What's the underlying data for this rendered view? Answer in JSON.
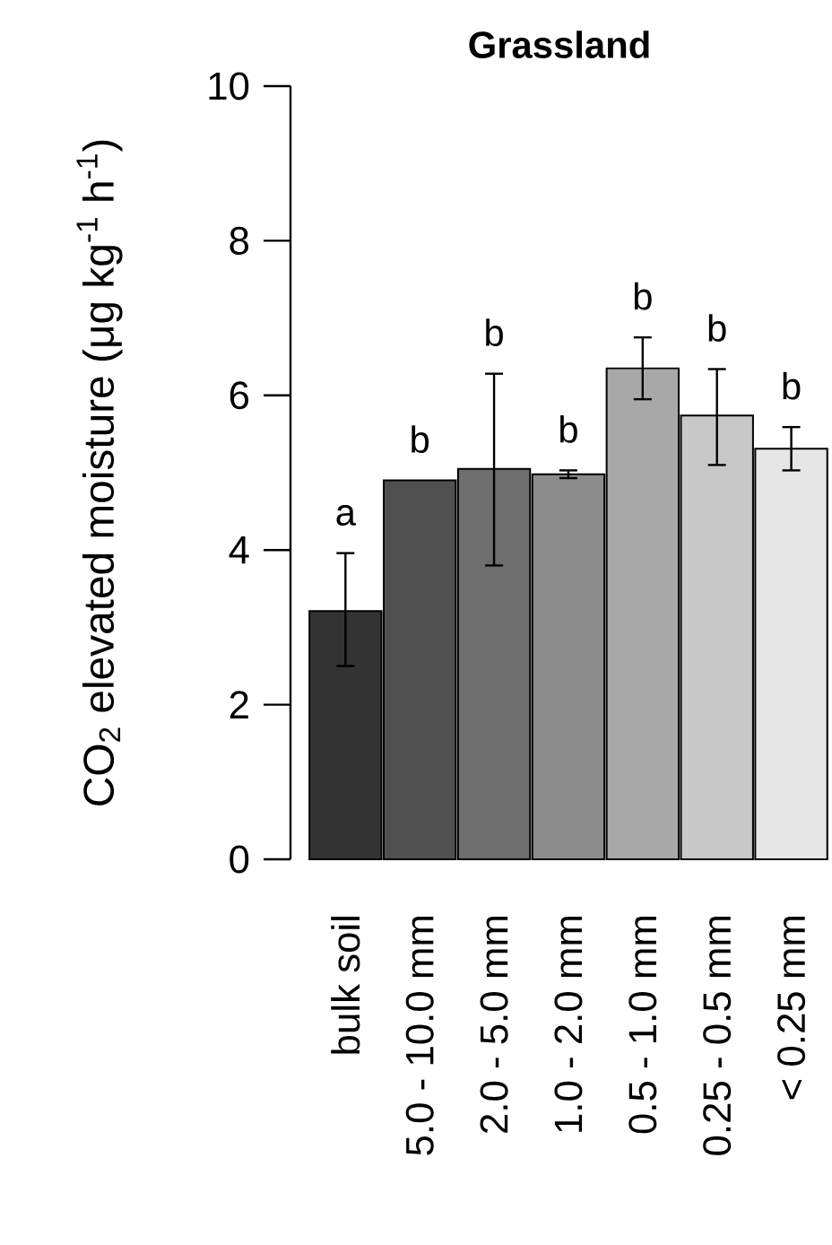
{
  "chart_data": {
    "type": "bar",
    "title": "Grassland",
    "ylabel": "CO$_{2}$ elevated moisture (μg kg$^{-1}$ h$^{-1}$)",
    "categories": [
      "bulk soil",
      "5.0 - 10.0 mm",
      "2.0 - 5.0 mm",
      "1.0 - 2.0 mm",
      "0.5 - 1.0 mm",
      "0.25 - 0.5 mm",
      "< 0.25 mm"
    ],
    "values": [
      3.21,
      4.9,
      5.05,
      4.98,
      6.35,
      5.74,
      5.31
    ],
    "errors": [
      [
        2.5,
        3.96
      ],
      null,
      [
        3.8,
        6.28
      ],
      [
        4.93,
        5.03
      ],
      [
        5.95,
        6.75
      ],
      [
        5.1,
        6.34
      ],
      [
        5.03,
        5.59
      ]
    ],
    "colors": [
      "#333333",
      "#505050",
      "#6e6e6e",
      "#8c8c8c",
      "#a8a8a8",
      "#c8c8c8",
      "#e6e6e6"
    ],
    "ylim": [
      0,
      10
    ],
    "yticks": [
      0,
      2,
      4,
      6,
      8,
      10
    ],
    "grid": false,
    "annotations": [
      "a",
      "b",
      "b",
      "b",
      "b",
      "b",
      "b"
    ]
  }
}
